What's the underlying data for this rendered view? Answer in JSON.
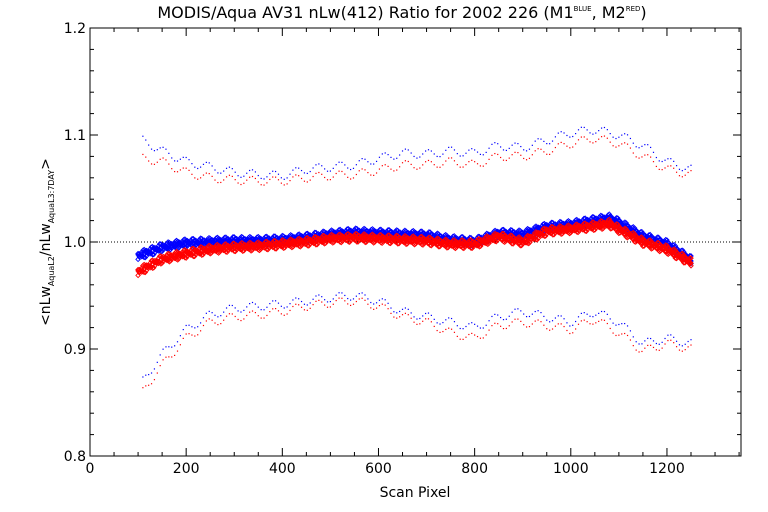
{
  "chart_data": {
    "type": "scatter",
    "title": {
      "main": "MODIS/Aqua AV31 nLw(412) Ratio for 2002 226 (M1",
      "sup1": "BLUE",
      "mid": ", M2",
      "sup2": "RED",
      "end": ")"
    },
    "xlabel": "Scan Pixel",
    "ylabel": {
      "open": "<nLw",
      "sub1": "AquaL2",
      "slash": "/nLw",
      "sub2": "AquaL3:7DAY",
      "close": ">"
    },
    "xlim": [
      0,
      1354
    ],
    "ylim": [
      0.8,
      1.2
    ],
    "xticks": [
      0,
      200,
      400,
      600,
      800,
      1000,
      1200
    ],
    "yticks": [
      0.8,
      0.9,
      1.0,
      1.1,
      1.2
    ],
    "ytick_labels": [
      "0.8",
      "0.9",
      "1.0",
      "1.1",
      "1.2"
    ],
    "reference_line": 1.0,
    "grid": false,
    "colors": {
      "M1": "#0000ff",
      "M2": "#ff0000",
      "axes": "#000000"
    },
    "series": [
      {
        "name": "M1",
        "kind": "mean",
        "x": [
          100,
          150,
          200,
          250,
          300,
          350,
          400,
          450,
          500,
          550,
          600,
          650,
          700,
          750,
          800,
          850,
          900,
          950,
          1000,
          1050,
          1080,
          1100,
          1150,
          1200,
          1250
        ],
        "y": [
          0.987,
          0.995,
          0.999,
          1.0,
          1.001,
          1.001,
          1.002,
          1.004,
          1.007,
          1.009,
          1.008,
          1.007,
          1.006,
          1.002,
          1.0,
          1.008,
          1.007,
          1.014,
          1.016,
          1.02,
          1.022,
          1.018,
          1.005,
          0.998,
          0.983
        ]
      },
      {
        "name": "M2",
        "kind": "mean",
        "x": [
          100,
          150,
          200,
          250,
          300,
          350,
          400,
          450,
          500,
          550,
          600,
          650,
          700,
          750,
          800,
          850,
          900,
          950,
          1000,
          1050,
          1080,
          1100,
          1150,
          1200,
          1250
        ],
        "y": [
          0.972,
          0.984,
          0.989,
          0.993,
          0.995,
          0.996,
          0.998,
          1.0,
          1.003,
          1.004,
          1.003,
          1.002,
          1.001,
          0.998,
          0.998,
          1.005,
          1.0,
          1.01,
          1.012,
          1.015,
          1.017,
          1.012,
          1.0,
          0.993,
          0.981
        ]
      },
      {
        "name": "M1 upper",
        "kind": "dots",
        "x": [
          110,
          150,
          200,
          250,
          300,
          350,
          400,
          450,
          500,
          550,
          600,
          650,
          700,
          750,
          800,
          850,
          900,
          950,
          1000,
          1050,
          1100,
          1150,
          1200,
          1250
        ],
        "y": [
          1.095,
          1.085,
          1.075,
          1.07,
          1.065,
          1.063,
          1.062,
          1.068,
          1.07,
          1.072,
          1.078,
          1.083,
          1.082,
          1.085,
          1.083,
          1.09,
          1.088,
          1.095,
          1.102,
          1.105,
          1.1,
          1.09,
          1.075,
          1.068
        ]
      },
      {
        "name": "M2 upper",
        "kind": "dots",
        "x": [
          110,
          150,
          200,
          250,
          300,
          350,
          400,
          450,
          500,
          550,
          600,
          650,
          700,
          750,
          800,
          850,
          900,
          950,
          1000,
          1050,
          1100,
          1150,
          1200,
          1250
        ],
        "y": [
          1.078,
          1.075,
          1.065,
          1.06,
          1.058,
          1.057,
          1.057,
          1.06,
          1.062,
          1.063,
          1.067,
          1.072,
          1.072,
          1.075,
          1.072,
          1.08,
          1.08,
          1.085,
          1.092,
          1.097,
          1.092,
          1.08,
          1.068,
          1.063
        ]
      },
      {
        "name": "M1 lower",
        "kind": "dots",
        "x": [
          110,
          150,
          200,
          250,
          300,
          350,
          400,
          450,
          500,
          550,
          600,
          650,
          700,
          750,
          800,
          850,
          900,
          950,
          1000,
          1050,
          1100,
          1150,
          1200,
          1250
        ],
        "y": [
          0.87,
          0.895,
          0.918,
          0.932,
          0.938,
          0.94,
          0.942,
          0.945,
          0.948,
          0.95,
          0.945,
          0.935,
          0.93,
          0.925,
          0.92,
          0.93,
          0.935,
          0.93,
          0.925,
          0.935,
          0.925,
          0.905,
          0.91,
          0.905
        ]
      },
      {
        "name": "M2 lower",
        "kind": "dots",
        "x": [
          110,
          150,
          200,
          250,
          300,
          350,
          400,
          450,
          500,
          550,
          600,
          650,
          700,
          750,
          800,
          850,
          900,
          950,
          1000,
          1050,
          1100,
          1150,
          1200,
          1250
        ],
        "y": [
          0.86,
          0.885,
          0.91,
          0.925,
          0.93,
          0.932,
          0.935,
          0.94,
          0.943,
          0.945,
          0.94,
          0.93,
          0.925,
          0.915,
          0.91,
          0.922,
          0.925,
          0.922,
          0.918,
          0.928,
          0.915,
          0.898,
          0.905,
          0.9
        ]
      }
    ]
  }
}
